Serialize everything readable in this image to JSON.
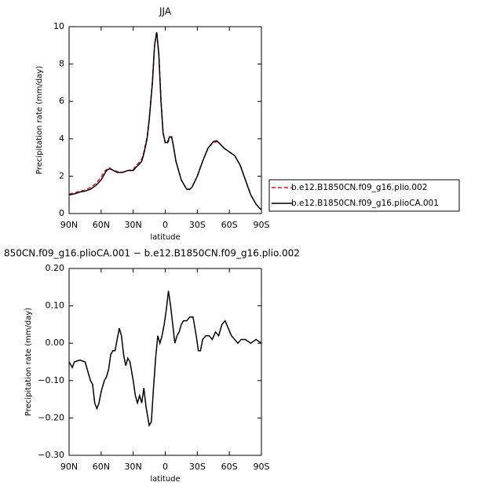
{
  "chart_data": [
    {
      "type": "line",
      "title": "JJA",
      "xlabel": "latitude",
      "ylabel": "Precipitation rate (mm/day)",
      "x": [
        90,
        85,
        80,
        75,
        70,
        65,
        60,
        57,
        55,
        52,
        50,
        45,
        40,
        35,
        30,
        27,
        25,
        22,
        20,
        17,
        15,
        12,
        10,
        8,
        6,
        4,
        2,
        0,
        -2,
        -4,
        -6,
        -8,
        -10,
        -15,
        -20,
        -23,
        -25,
        -30,
        -35,
        -40,
        -45,
        -48,
        -50,
        -55,
        -60,
        -65,
        -70,
        -75,
        -80,
        -85,
        -88,
        -90
      ],
      "series": [
        {
          "name": "b.e12.B1850CN.f09_g16.plio.002",
          "color": "#e8141e",
          "dash": true,
          "values": [
            1.05,
            1.1,
            1.2,
            1.25,
            1.4,
            1.6,
            1.95,
            2.25,
            2.35,
            2.45,
            2.35,
            2.25,
            2.2,
            2.3,
            2.35,
            2.6,
            2.7,
            2.9,
            3.3,
            4.1,
            5.1,
            7.1,
            9.0,
            9.75,
            8.6,
            6.1,
            4.3,
            3.75,
            3.75,
            4.0,
            4.1,
            3.5,
            2.8,
            1.8,
            1.3,
            1.3,
            1.4,
            2.0,
            2.8,
            3.5,
            3.8,
            3.85,
            3.8,
            3.5,
            3.3,
            3.1,
            2.6,
            1.8,
            1.0,
            0.5,
            0.3,
            0.2
          ]
        },
        {
          "name": "b.e12.B1850CN.f09_g16.plioCA.001",
          "color": "#000000",
          "dash": false,
          "values": [
            1.0,
            1.05,
            1.15,
            1.2,
            1.3,
            1.5,
            1.8,
            2.1,
            2.3,
            2.4,
            2.35,
            2.2,
            2.2,
            2.3,
            2.3,
            2.5,
            2.6,
            2.8,
            3.2,
            4.0,
            5.0,
            7.0,
            9.0,
            9.7,
            8.5,
            6.0,
            4.3,
            3.8,
            3.8,
            4.1,
            4.1,
            3.5,
            2.8,
            1.8,
            1.3,
            1.3,
            1.4,
            2.0,
            2.8,
            3.5,
            3.85,
            3.9,
            3.8,
            3.5,
            3.3,
            3.1,
            2.6,
            1.8,
            1.0,
            0.5,
            0.3,
            0.2
          ]
        }
      ],
      "xlim": [
        90,
        -90
      ],
      "xticks": [
        {
          "value": 90,
          "label": "90N"
        },
        {
          "value": 60,
          "label": "60N"
        },
        {
          "value": 30,
          "label": "30N"
        },
        0,
        {
          "value": -30,
          "label": "30S"
        },
        {
          "value": -60,
          "label": "60S"
        },
        {
          "value": -90,
          "label": "90S"
        }
      ],
      "ylim": [
        0,
        10
      ],
      "yticks": [
        0,
        2,
        4,
        6,
        8,
        10
      ],
      "legend": "right"
    },
    {
      "type": "line",
      "title": "850CN.f09_g16.plioCA.001 − b.e12.B1850CN.f09_g16.plio.002",
      "xlabel": "latitude",
      "ylabel": "Precipitation rate (mm/day)",
      "x": [
        90,
        87,
        85,
        80,
        75,
        72,
        70,
        68,
        66,
        64,
        62,
        60,
        57,
        55,
        53,
        51,
        49,
        47,
        45,
        43,
        41,
        39,
        37,
        35,
        33,
        30,
        28,
        26,
        24,
        22,
        20,
        18,
        15,
        13,
        11,
        9,
        7,
        5,
        3,
        1,
        -1,
        -3,
        -5,
        -7,
        -9,
        -11,
        -13,
        -15,
        -17,
        -20,
        -23,
        -26,
        -29,
        -31,
        -33,
        -35,
        -38,
        -41,
        -44,
        -47,
        -50,
        -53,
        -56,
        -59,
        -62,
        -65,
        -68,
        -71,
        -75,
        -80,
        -85,
        -90
      ],
      "series": [
        {
          "color": "#000000",
          "dash": false,
          "values": [
            -0.05,
            -0.065,
            -0.05,
            -0.045,
            -0.05,
            -0.08,
            -0.1,
            -0.11,
            -0.16,
            -0.175,
            -0.16,
            -0.13,
            -0.1,
            -0.09,
            -0.07,
            -0.03,
            -0.02,
            -0.02,
            0.01,
            0.04,
            0.02,
            -0.03,
            -0.06,
            -0.04,
            -0.05,
            -0.1,
            -0.14,
            -0.16,
            -0.14,
            -0.16,
            -0.12,
            -0.17,
            -0.22,
            -0.21,
            -0.12,
            -0.04,
            0.02,
            0.0,
            0.02,
            0.05,
            0.09,
            0.14,
            0.1,
            0.05,
            0.0,
            0.02,
            0.03,
            0.05,
            0.06,
            0.06,
            0.07,
            0.07,
            0.02,
            -0.02,
            -0.02,
            0.01,
            0.02,
            0.02,
            0.01,
            0.03,
            0.02,
            0.05,
            0.06,
            0.04,
            0.02,
            0.01,
            0.0,
            0.01,
            0.01,
            0.0,
            0.01,
            0.0
          ]
        }
      ],
      "xlim": [
        90,
        -90
      ],
      "xticks": [
        {
          "value": 90,
          "label": "90N"
        },
        {
          "value": 60,
          "label": "60N"
        },
        {
          "value": 30,
          "label": "30N"
        },
        0,
        {
          "value": -30,
          "label": "30S"
        },
        {
          "value": -60,
          "label": "60S"
        },
        {
          "value": -90,
          "label": "90S"
        }
      ],
      "ylim": [
        -0.3,
        0.2
      ],
      "yticks": [
        {
          "value": -0.3,
          "label": "−0.30"
        },
        {
          "value": -0.2,
          "label": "−0.20"
        },
        {
          "value": -0.1,
          "label": "−0.10"
        },
        {
          "value": 0,
          "label": "0.00"
        },
        {
          "value": 0.1,
          "label": "0.10"
        },
        {
          "value": 0.2,
          "label": "0.20"
        }
      ]
    }
  ]
}
